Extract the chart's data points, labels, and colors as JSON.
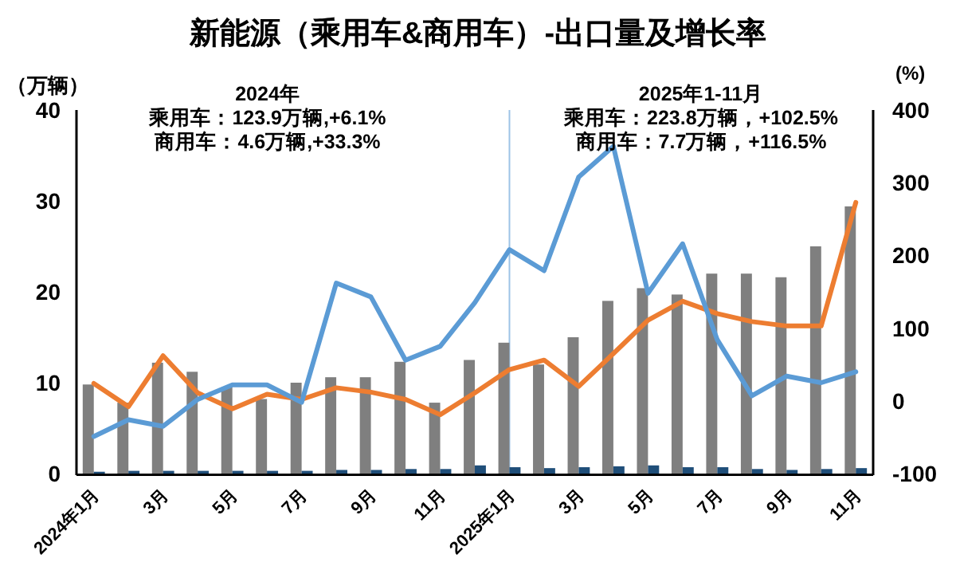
{
  "chart_data": {
    "type": "bar",
    "title": "新能源（乘用车&商用车）-出口量及增长率",
    "ylabel": "（万辆）",
    "y2label": "(%)",
    "categories": [
      "2024年1月",
      null,
      "3月",
      null,
      "5月",
      null,
      "7月",
      null,
      "9月",
      null,
      "11月",
      null,
      "2025年1月",
      null,
      "3月",
      null,
      "5月",
      null,
      "7月",
      null,
      "9月",
      null,
      "11月"
    ],
    "series": [
      {
        "color": "#7f7f7f",
        "values": [
          9.8,
          7.8,
          12.2,
          11.2,
          9.5,
          8.2,
          10.0,
          10.6,
          10.6,
          12.3,
          7.8,
          12.5,
          14.4,
          12.0,
          15.0,
          19.0,
          20.4,
          19.7,
          22.0,
          22.0,
          21.6,
          25.0,
          29.4
        ]
      },
      {
        "color": "#1f4e79",
        "values": [
          0.2,
          0.3,
          0.3,
          0.3,
          0.3,
          0.3,
          0.3,
          0.4,
          0.4,
          0.5,
          0.5,
          0.9,
          0.7,
          0.6,
          0.7,
          0.8,
          0.9,
          0.7,
          0.7,
          0.5,
          0.4,
          0.5,
          0.6
        ]
      },
      {
        "type": "line",
        "axis": "y2",
        "color": "#ed7d31",
        "values": [
          24,
          -8,
          62,
          11,
          -11,
          9,
          2,
          18,
          12,
          2,
          -19,
          11,
          43,
          56,
          20,
          65,
          111,
          137,
          120,
          109,
          103,
          103,
          273
        ]
      },
      {
        "type": "line",
        "axis": "y2",
        "color": "#5b9bd5",
        "values": [
          -49,
          -26,
          -35,
          2,
          22,
          22,
          -2,
          162,
          143,
          56,
          75,
          135,
          208,
          179,
          308,
          350,
          148,
          216,
          84,
          7,
          34,
          25,
          40
        ]
      }
    ],
    "ylim": [
      0,
      40
    ],
    "yticks": [
      0,
      10,
      20,
      30,
      40
    ],
    "y2lim": [
      -100,
      400
    ],
    "y2ticks": [
      -100,
      0,
      100,
      200,
      300,
      400
    ],
    "ref_lines": [
      {
        "axis": "x",
        "value": "2025年1月",
        "color": "#9dc3e6"
      }
    ],
    "annotations": [
      "2024年",
      "乘用车：123.9万辆,+6.1%",
      "商用车：4.6万辆,+33.3%",
      "2025年1-11月",
      "乘用车：223.8万辆，+102.5%",
      "商用车：7.7万辆，+116.5%"
    ],
    "grid": false
  }
}
